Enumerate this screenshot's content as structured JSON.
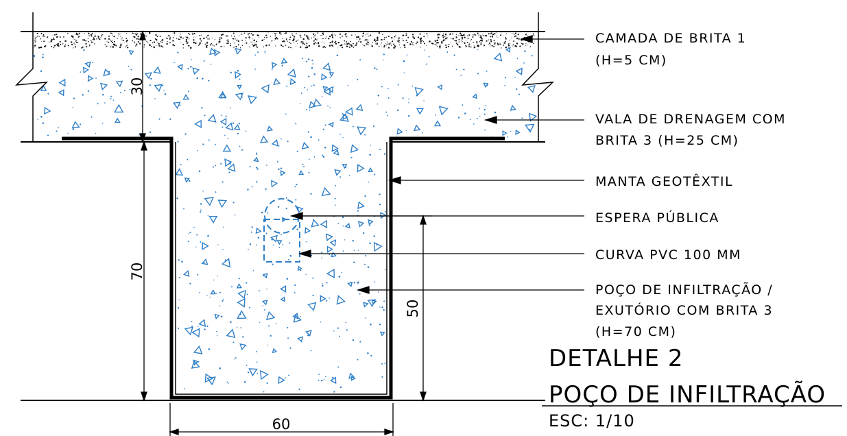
{
  "drawing": {
    "colors": {
      "line": "#000000",
      "aggregate": "#2f7fc8",
      "fine_gravel": "#1a1a1a",
      "background": "#ffffff"
    },
    "labels": {
      "camada_brita": [
        "CAMADA DE BRITA 1",
        "(H=5 CM)"
      ],
      "vala_drenagem": [
        "VALA DE DRENAGEM COM",
        "BRITA 3 (H=25 CM)"
      ],
      "manta": [
        "MANTA GEOTÊXTIL"
      ],
      "espera": [
        "ESPERA PÚBLICA"
      ],
      "curva": [
        "CURVA PVC 100 MM"
      ],
      "poco": [
        "POÇO DE INFILTRAÇÃO /",
        "EXUTÓRIO COM BRITA 3",
        "(H=70 CM)"
      ]
    },
    "dimensions": {
      "trench_depth": "30",
      "well_depth": "70",
      "pipe_height": "50",
      "well_width": "60"
    },
    "title": {
      "line1": "DETALHE 2",
      "line2": "POÇO DE INFILTRAÇÃO",
      "scale": "ESC: 1/10"
    }
  }
}
